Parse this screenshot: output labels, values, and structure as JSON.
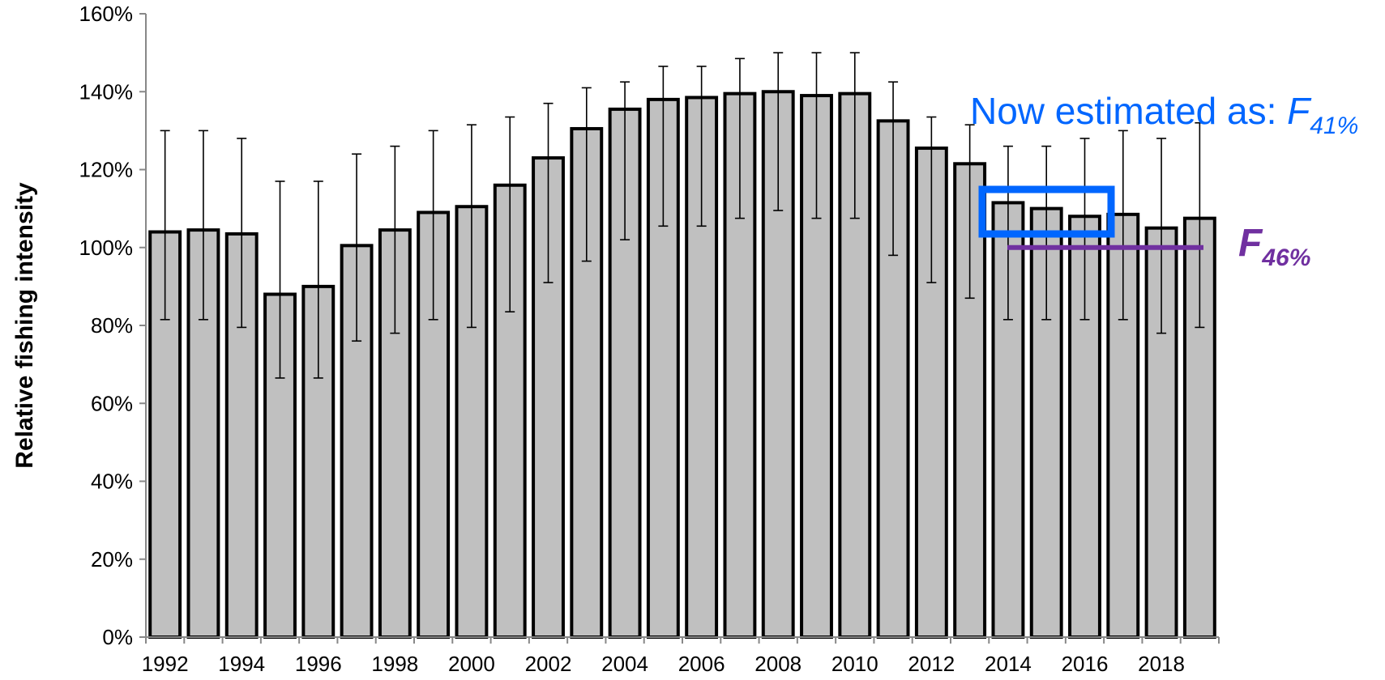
{
  "chart_data": {
    "type": "bar",
    "y_label": "Relative fishing intensity",
    "categories": [
      "1992",
      null,
      "1994",
      null,
      "1996",
      null,
      "1998",
      null,
      "2000",
      null,
      "2002",
      null,
      "2004",
      null,
      "2006",
      null,
      "2008",
      null,
      "2010",
      null,
      "2012",
      null,
      "2014",
      null,
      "2016",
      null,
      "2018",
      null
    ],
    "values": [
      104,
      104.5,
      103.5,
      88,
      90,
      100.5,
      104.5,
      109,
      110.5,
      116,
      123,
      130.5,
      135.5,
      138,
      138.5,
      139.5,
      140,
      139,
      139.5,
      132.5,
      125.5,
      121.5,
      111.5,
      110,
      108,
      108.5,
      105,
      107.5
    ],
    "upper": [
      130,
      130,
      128,
      117,
      117,
      124,
      126,
      130,
      131.5,
      133.5,
      137,
      141,
      142.5,
      146.5,
      146.5,
      148.5,
      150,
      150,
      150,
      142.5,
      133.5,
      131.5,
      126,
      126,
      128,
      130,
      128,
      132
    ],
    "lower": [
      81.5,
      81.5,
      79.5,
      66.5,
      66.5,
      76,
      78,
      81.5,
      79.5,
      83.5,
      91,
      96.5,
      102,
      105.5,
      105.5,
      107.5,
      109.5,
      107.5,
      107.5,
      98,
      91,
      87,
      81.5,
      81.5,
      81.5,
      81.5,
      78,
      79.5
    ],
    "color": "#c0c0c0",
    "ylim": [
      0,
      160
    ],
    "yticks": [
      {
        "value": 0,
        "label": "0%"
      },
      {
        "value": 20,
        "label": "20%"
      },
      {
        "value": 40,
        "label": "40%"
      },
      {
        "value": 60,
        "label": "60%"
      },
      {
        "value": 80,
        "label": "80%"
      },
      {
        "value": 100,
        "label": "100%"
      },
      {
        "value": 120,
        "label": "120%"
      },
      {
        "value": 140,
        "label": "140%"
      },
      {
        "value": 160,
        "label": "160%"
      }
    ],
    "reference_line": {
      "value": 100,
      "color": "#7030a0",
      "symbol": "F",
      "subscript": "46%"
    },
    "annotation": {
      "text": "Now estimated as: ",
      "symbol": "F",
      "subscript": "41%",
      "color": "#0066ff"
    }
  }
}
